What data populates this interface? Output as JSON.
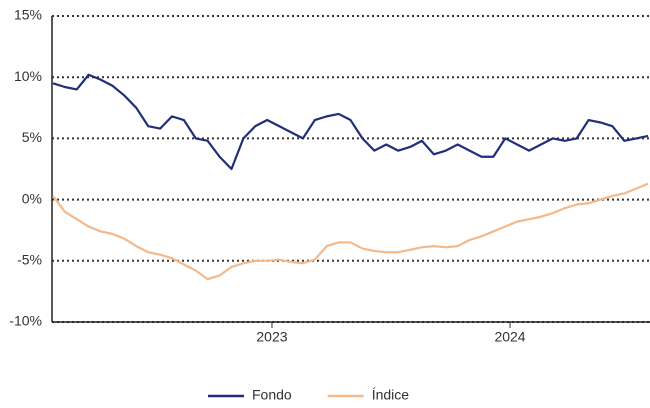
{
  "chart_data": {
    "type": "line",
    "x": [
      2022.08,
      2022.13,
      2022.18,
      2022.23,
      2022.28,
      2022.33,
      2022.38,
      2022.43,
      2022.48,
      2022.53,
      2022.58,
      2022.63,
      2022.68,
      2022.73,
      2022.78,
      2022.83,
      2022.88,
      2022.93,
      2022.98,
      2023.03,
      2023.08,
      2023.13,
      2023.18,
      2023.23,
      2023.28,
      2023.33,
      2023.38,
      2023.43,
      2023.48,
      2023.53,
      2023.58,
      2023.63,
      2023.68,
      2023.73,
      2023.78,
      2023.83,
      2023.88,
      2023.93,
      2023.98,
      2024.03,
      2024.08,
      2024.13,
      2024.18,
      2024.23,
      2024.28,
      2024.33,
      2024.38,
      2024.43,
      2024.48,
      2024.53,
      2024.58
    ],
    "series": [
      {
        "name": "Fondo",
        "color": "#1f2f7a",
        "values": [
          9.5,
          9.2,
          9.0,
          10.2,
          9.8,
          9.3,
          8.5,
          7.5,
          6.0,
          5.8,
          6.8,
          6.5,
          5.0,
          4.8,
          3.5,
          2.5,
          5.0,
          6.0,
          6.5,
          6.0,
          5.5,
          5.0,
          6.5,
          6.8,
          7.0,
          6.5,
          5.0,
          4.0,
          4.5,
          4.0,
          4.3,
          4.8,
          3.7,
          4.0,
          4.5,
          4.0,
          3.5,
          3.5,
          5.0,
          4.5,
          4.0,
          4.5,
          5.0,
          4.8,
          5.0,
          6.5,
          6.3,
          6.0,
          4.8,
          5.0,
          5.2
        ]
      },
      {
        "name": "Índice",
        "color": "#f4b98a",
        "values": [
          0.3,
          -1.0,
          -1.6,
          -2.2,
          -2.6,
          -2.8,
          -3.2,
          -3.8,
          -4.3,
          -4.5,
          -4.8,
          -5.3,
          -5.8,
          -6.5,
          -6.2,
          -5.5,
          -5.2,
          -5.0,
          -5.0,
          -4.9,
          -5.1,
          -5.2,
          -4.9,
          -3.8,
          -3.5,
          -3.5,
          -4.0,
          -4.2,
          -4.3,
          -4.3,
          -4.1,
          -3.9,
          -3.8,
          -3.9,
          -3.8,
          -3.3,
          -3.0,
          -2.6,
          -2.2,
          -1.8,
          -1.6,
          -1.4,
          -1.1,
          -0.7,
          -0.4,
          -0.3,
          0.0,
          0.3,
          0.5,
          0.9,
          1.3
        ]
      }
    ],
    "xlim": [
      2022.076,
      2024.588
    ],
    "xticks": [
      2023,
      2024
    ],
    "ylim": [
      -10,
      15
    ],
    "yticks": [
      {
        "value": -10,
        "label": "-10%"
      },
      {
        "value": -5,
        "label": "-5%"
      },
      {
        "value": 0,
        "label": "0%"
      },
      {
        "value": 5,
        "label": "5%"
      },
      {
        "value": 10,
        "label": "10%"
      },
      {
        "value": 15,
        "label": "15%"
      }
    ],
    "grid": true,
    "legend": "bottom"
  }
}
